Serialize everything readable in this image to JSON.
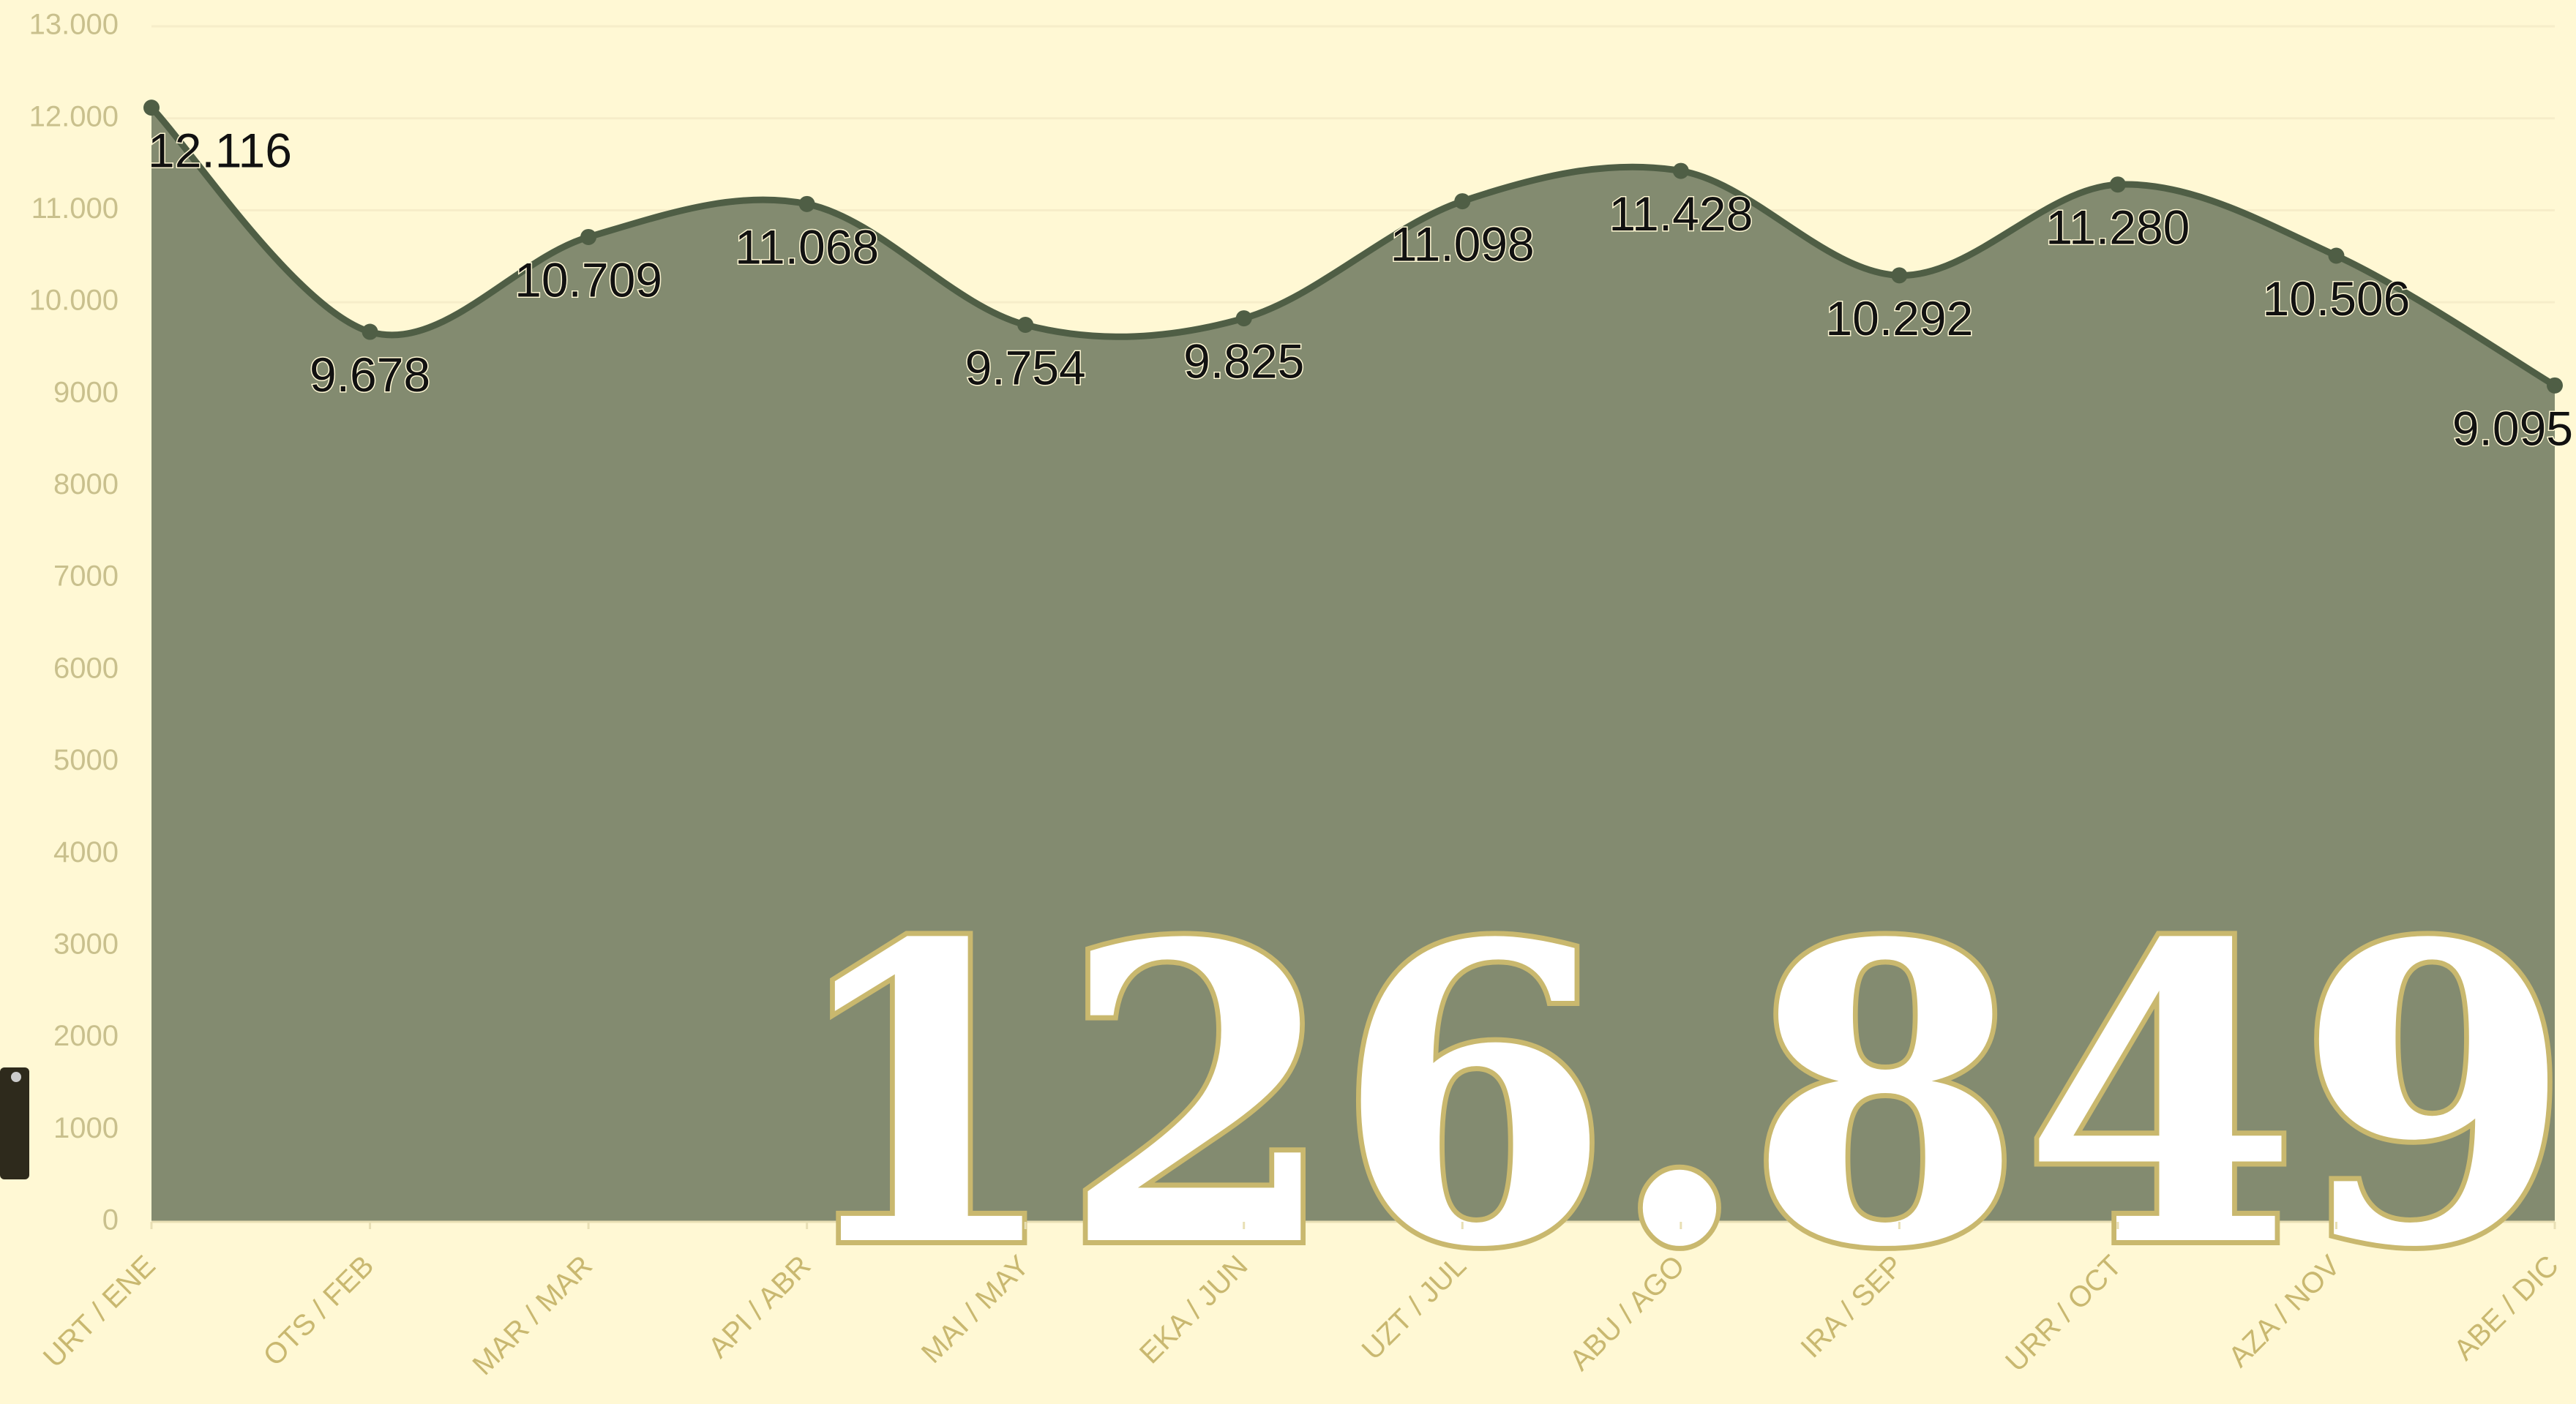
{
  "chart_data": {
    "type": "area",
    "categories": [
      "URT / ENE",
      "OTS / FEB",
      "MAR / MAR",
      "API / ABR",
      "MAI / MAY",
      "EKA / JUN",
      "UZT / JUL",
      "ABU / AGO",
      "IRA / SEP",
      "URR / OCT",
      "AZA / NOV",
      "ABE / DIC"
    ],
    "values": [
      12116,
      9678,
      10709,
      11068,
      9754,
      9825,
      11098,
      11428,
      10292,
      11280,
      10506,
      9095
    ],
    "value_labels": [
      "12.116",
      "9.678",
      "10.709",
      "11.068",
      "9.754",
      "9.825",
      "11.098",
      "11.428",
      "10.292",
      "11.280",
      "10.506",
      "9.095"
    ],
    "color": "#838b70",
    "line_color": "#4f5e45",
    "ylim": [
      0,
      13000
    ],
    "yticks": [
      0,
      1000,
      2000,
      3000,
      4000,
      5000,
      6000,
      7000,
      8000,
      9000,
      {
        "value": 10000,
        "label": "10.000"
      },
      {
        "value": 11000,
        "label": "11.000"
      },
      {
        "value": 12000,
        "label": "12.000"
      },
      {
        "value": 13000,
        "label": "13.000"
      }
    ],
    "grid": true,
    "total": "126.849"
  }
}
